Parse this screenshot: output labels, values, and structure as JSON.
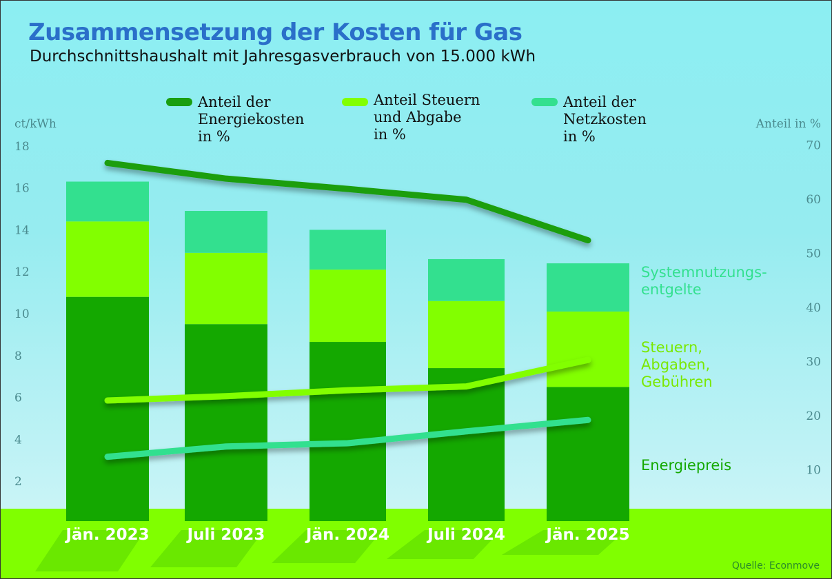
{
  "title": "Zusammensetzung der Kosten für Gas",
  "subtitle": "Durchschnittshaushalt mit Jahresgasverbrauch von 15.000 kWh",
  "source": "Quelle: Econmove",
  "colors": {
    "energie": "#14a800",
    "steuern": "#82ff00",
    "netz": "#33e08f",
    "energie_line": "#1a9e10",
    "ground": "#80ff00"
  },
  "chart_data": {
    "type": "bar",
    "stacked": true,
    "categories": [
      "Jän. 2023",
      "Juli 2023",
      "Jän. 2024",
      "Juli 2024",
      "Jän. 2025"
    ],
    "left_axis": {
      "label": "ct/kWh",
      "range": [
        0,
        18
      ],
      "ticks": [
        2,
        4,
        6,
        8,
        10,
        12,
        14,
        16,
        18
      ]
    },
    "right_axis": {
      "label": "Anteil in %",
      "range": [
        0,
        70
      ],
      "ticks": [
        10,
        20,
        30,
        40,
        50,
        60,
        70
      ]
    },
    "series": [
      {
        "name": "Energiepreis",
        "axis": "left",
        "type": "bar",
        "values": [
          10.8,
          9.5,
          8.65,
          7.4,
          6.5
        ]
      },
      {
        "name": "Steuern, Abgaben, Gebühren",
        "axis": "left",
        "type": "bar",
        "values": [
          3.6,
          3.4,
          3.45,
          3.2,
          3.6
        ]
      },
      {
        "name": "Systemnutzungs-entgelte",
        "axis": "left",
        "type": "bar",
        "values": [
          1.9,
          2.0,
          1.9,
          2.0,
          2.3
        ]
      },
      {
        "name": "Anteil der Energiekosten in %",
        "axis": "right",
        "type": "line",
        "values": [
          66.7,
          63.8,
          61.9,
          59.9,
          52.4
        ]
      },
      {
        "name": "Anteil Steuern und Abgabe in %",
        "axis": "right",
        "type": "line",
        "values": [
          22.8,
          23.6,
          24.7,
          25.4,
          30.3
        ]
      },
      {
        "name": "Anteil der Netzkosten in %",
        "axis": "right",
        "type": "line",
        "values": [
          12.4,
          14.3,
          14.9,
          17.1,
          19.2
        ]
      }
    ],
    "legend": [
      [
        "Anteil der",
        "Energiekosten",
        "in %"
      ],
      [
        "Anteil Steuern",
        "und Abgabe",
        "in %"
      ],
      [
        "Anteil der",
        "Netzkosten",
        "in %"
      ]
    ],
    "stack_labels": [
      [
        "Systemnutzungs-",
        "entgelte"
      ],
      [
        "Steuern,",
        "Abgaben,",
        "Gebühren"
      ],
      [
        "Energiepreis"
      ]
    ],
    "legend_placement": "top"
  }
}
